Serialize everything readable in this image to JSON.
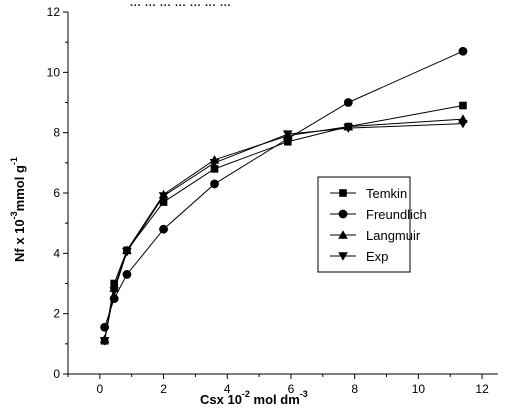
{
  "header_fragment": "...  ...  ...  ...  ...  ...  ...",
  "chart_data": {
    "type": "line",
    "xlabel": {
      "main": "Csx  10",
      "sup": "-2",
      "unit": " mol dm",
      "unit_sup": "-3"
    },
    "ylabel": {
      "main": "Nf x 10",
      "sup": "-3",
      "unit": "mmol g",
      "unit_sup": "-1"
    },
    "xlim": [
      -1,
      12.5
    ],
    "ylim": [
      0,
      12
    ],
    "xticks": [
      0,
      2,
      4,
      6,
      8,
      10,
      12
    ],
    "yticks": [
      0,
      2,
      4,
      6,
      8,
      10,
      12
    ],
    "legend_position": "center-right",
    "colors": {
      "line": "#000000",
      "marker": "#000000"
    },
    "series": [
      {
        "name": "Temkin",
        "marker": "square",
        "x": [
          0.15,
          0.45,
          0.85,
          2.0,
          3.6,
          5.9,
          7.8,
          11.4
        ],
        "y": [
          1.1,
          3.0,
          4.1,
          5.7,
          6.8,
          7.7,
          8.2,
          8.9
        ]
      },
      {
        "name": "Freundlich",
        "marker": "circle",
        "x": [
          0.15,
          0.45,
          0.85,
          2.0,
          3.6,
          5.9,
          7.8,
          11.4
        ],
        "y": [
          1.55,
          2.5,
          3.3,
          4.8,
          6.3,
          7.8,
          9.0,
          10.7
        ]
      },
      {
        "name": "Langmuir",
        "marker": "triangle-up",
        "x": [
          0.15,
          0.45,
          0.85,
          2.0,
          3.6,
          5.9,
          7.8,
          11.4
        ],
        "y": [
          1.15,
          2.85,
          4.1,
          5.95,
          7.1,
          7.9,
          8.2,
          8.45
        ]
      },
      {
        "name": "Exp",
        "marker": "triangle-down",
        "x": [
          0.15,
          0.45,
          0.85,
          2.0,
          3.6,
          5.9,
          7.8,
          11.4
        ],
        "y": [
          1.1,
          2.75,
          4.05,
          5.9,
          7.0,
          7.95,
          8.15,
          8.3
        ]
      }
    ]
  }
}
